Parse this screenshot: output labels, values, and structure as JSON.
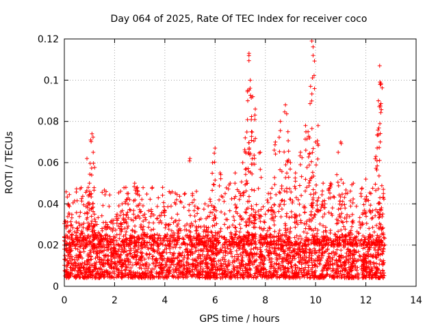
{
  "chart_data": {
    "type": "scatter",
    "title": "Day 064 of 2025, Rate Of TEC Index for receiver coco",
    "xlabel": "GPS time / hours",
    "ylabel": "ROTI / TECUs",
    "xlim": [
      0,
      14
    ],
    "ylim": [
      0,
      0.12
    ],
    "xticks": [
      0,
      2,
      4,
      6,
      8,
      10,
      12,
      14
    ],
    "xtick_labels": [
      "0",
      "2",
      "4",
      "6",
      "8",
      "10",
      "12",
      "14"
    ],
    "yticks": [
      0,
      0.02,
      0.04,
      0.06,
      0.08,
      0.1,
      0.12
    ],
    "ytick_labels": [
      "0",
      "0.02",
      "0.04",
      "0.06",
      "0.08",
      "0.1",
      "0.12"
    ],
    "grid": true,
    "marker": "+",
    "color": "#ff0000",
    "series": [
      {
        "name": "ROTI",
        "x": [
          0.05,
          0.15,
          0.3,
          0.5,
          0.7,
          0.9,
          0.95,
          1.0,
          1.05,
          1.1,
          1.15,
          1.2,
          1.3,
          1.5,
          1.7,
          1.9,
          2.1,
          2.3,
          2.45,
          2.5,
          2.6,
          2.8,
          2.9,
          3.0,
          3.2,
          3.5,
          3.7,
          4.0,
          4.2,
          4.5,
          4.8,
          5.0,
          5.1,
          5.3,
          5.6,
          5.9,
          6.0,
          6.2,
          6.4,
          6.6,
          6.8,
          7.0,
          7.1,
          7.2,
          7.3,
          7.35,
          7.4,
          7.45,
          7.5,
          7.6,
          7.8,
          8.0,
          8.2,
          8.4,
          8.6,
          8.8,
          8.9,
          9.0,
          9.2,
          9.4,
          9.6,
          9.7,
          9.8,
          9.85,
          9.9,
          10.0,
          10.1,
          10.3,
          10.6,
          10.9,
          11.0,
          11.1,
          11.2,
          11.5,
          11.8,
          12.0,
          12.2,
          12.4,
          12.5,
          12.55,
          12.6,
          12.7
        ],
        "y": [
          0.02,
          0.04,
          0.025,
          0.028,
          0.03,
          0.062,
          0.048,
          0.05,
          0.071,
          0.074,
          0.065,
          0.035,
          0.03,
          0.028,
          0.03,
          0.032,
          0.035,
          0.04,
          0.048,
          0.045,
          0.042,
          0.05,
          0.048,
          0.04,
          0.035,
          0.048,
          0.033,
          0.036,
          0.03,
          0.035,
          0.045,
          0.062,
          0.045,
          0.038,
          0.04,
          0.06,
          0.067,
          0.055,
          0.045,
          0.05,
          0.055,
          0.045,
          0.06,
          0.072,
          0.09,
          0.113,
          0.1,
          0.075,
          0.092,
          0.086,
          0.065,
          0.035,
          0.045,
          0.07,
          0.08,
          0.088,
          0.075,
          0.06,
          0.055,
          0.065,
          0.078,
          0.075,
          0.097,
          0.119,
          0.112,
          0.07,
          0.078,
          0.05,
          0.05,
          0.065,
          0.07,
          0.05,
          0.045,
          0.05,
          0.045,
          0.052,
          0.045,
          0.063,
          0.09,
          0.107,
          0.098,
          0.045
        ]
      }
    ],
    "background_band": {
      "y_min": 0.004,
      "y_max": 0.025,
      "x_min": 0,
      "x_max": 12.75
    }
  }
}
